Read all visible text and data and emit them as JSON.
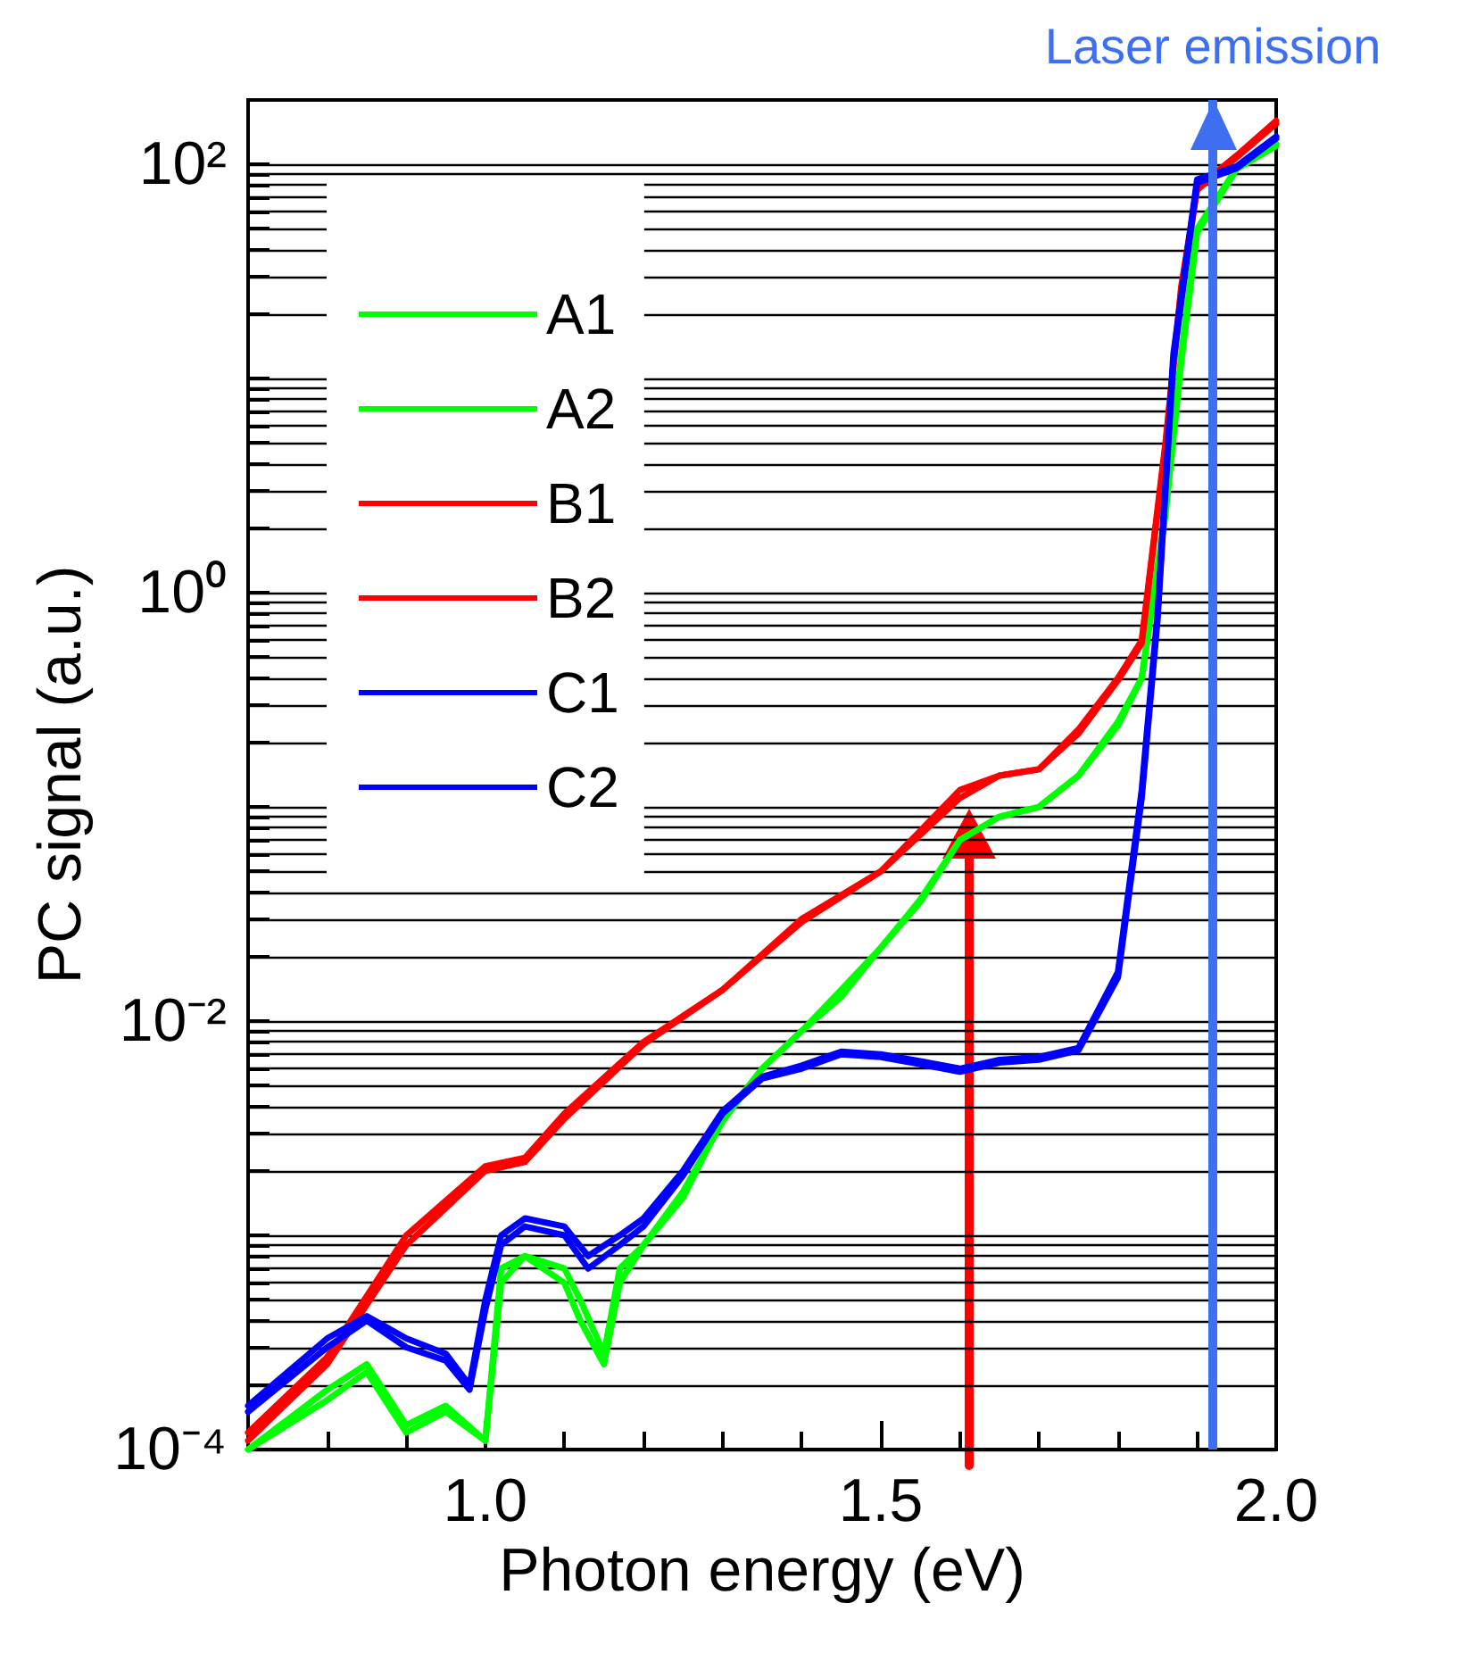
{
  "chart_data": {
    "type": "line",
    "xlabel": "Photon energy (eV)",
    "ylabel": "PC signal (a.u.)",
    "log": "y",
    "grid": "y",
    "legend": "top left",
    "line_style": "solid",
    "marker": "none",
    "xlim": [
      0.7,
      2.0
    ],
    "xticks": [
      {
        "value": 0.8,
        "label": null
      },
      {
        "value": 0.9,
        "label": null
      },
      {
        "value": 1.0,
        "label": "1.0"
      },
      {
        "value": 1.1,
        "label": null
      },
      {
        "value": 1.2,
        "label": null
      },
      {
        "value": 1.3,
        "label": null
      },
      {
        "value": 1.4,
        "label": null
      },
      {
        "value": 1.5,
        "label": "1.5"
      },
      {
        "value": 1.6,
        "label": null
      },
      {
        "value": 1.7,
        "label": null
      },
      {
        "value": 1.8,
        "label": null
      },
      {
        "value": 1.9,
        "label": null
      },
      {
        "value": 2.0,
        "label": "2.0"
      }
    ],
    "ylim": [
      0.0001,
      200
    ],
    "yticks": [
      {
        "value": 0.0001,
        "label": "10⁻⁴"
      },
      {
        "value": 0.0002,
        "label": null
      },
      {
        "value": 0.0003,
        "label": null
      },
      {
        "value": 0.0004,
        "label": null
      },
      {
        "value": 0.0005,
        "label": null
      },
      {
        "value": 0.0006,
        "label": null
      },
      {
        "value": 0.0007,
        "label": null
      },
      {
        "value": 0.0008,
        "label": null
      },
      {
        "value": 0.0009,
        "label": null
      },
      {
        "value": 0.001,
        "label": null
      },
      {
        "value": 0.002,
        "label": null
      },
      {
        "value": 0.003,
        "label": null
      },
      {
        "value": 0.004,
        "label": null
      },
      {
        "value": 0.005,
        "label": null
      },
      {
        "value": 0.006,
        "label": null
      },
      {
        "value": 0.007,
        "label": null
      },
      {
        "value": 0.008,
        "label": null
      },
      {
        "value": 0.009,
        "label": null
      },
      {
        "value": 0.01,
        "label": "10⁻²"
      },
      {
        "value": 0.02,
        "label": null
      },
      {
        "value": 0.03,
        "label": null
      },
      {
        "value": 0.04,
        "label": null
      },
      {
        "value": 0.05,
        "label": null
      },
      {
        "value": 0.06,
        "label": null
      },
      {
        "value": 0.07,
        "label": null
      },
      {
        "value": 0.08,
        "label": null
      },
      {
        "value": 0.09,
        "label": null
      },
      {
        "value": 0.1,
        "label": null
      },
      {
        "value": 0.2,
        "label": null
      },
      {
        "value": 0.3,
        "label": null
      },
      {
        "value": 0.4,
        "label": null
      },
      {
        "value": 0.5,
        "label": null
      },
      {
        "value": 0.6,
        "label": null
      },
      {
        "value": 0.7,
        "label": null
      },
      {
        "value": 0.8,
        "label": null
      },
      {
        "value": 0.9,
        "label": null
      },
      {
        "value": 1,
        "label": "10⁰"
      },
      {
        "value": 2,
        "label": null
      },
      {
        "value": 3,
        "label": null
      },
      {
        "value": 4,
        "label": null
      },
      {
        "value": 5,
        "label": null
      },
      {
        "value": 6,
        "label": null
      },
      {
        "value": 7,
        "label": null
      },
      {
        "value": 8,
        "label": null
      },
      {
        "value": 9,
        "label": null
      },
      {
        "value": 10,
        "label": null
      },
      {
        "value": 20,
        "label": null
      },
      {
        "value": 30,
        "label": null
      },
      {
        "value": 40,
        "label": null
      },
      {
        "value": 50,
        "label": null
      },
      {
        "value": 60,
        "label": null
      },
      {
        "value": 70,
        "label": null
      },
      {
        "value": 80,
        "label": null
      },
      {
        "value": 90,
        "label": null
      },
      {
        "value": 100,
        "label": "10²"
      }
    ],
    "ref_lines": [
      {
        "axis": "x",
        "value": 1.92,
        "label": "Laser emission",
        "color": "#3d6ff0"
      }
    ],
    "series": [
      {
        "name": "A1",
        "color": "#00ff00",
        "x": [
          0.7,
          0.8,
          0.85,
          0.9,
          0.95,
          1.0,
          1.02,
          1.05,
          1.1,
          1.12,
          1.15,
          1.17,
          1.2,
          1.25,
          1.3,
          1.35,
          1.4,
          1.45,
          1.5,
          1.55,
          1.6,
          1.65,
          1.7,
          1.75,
          1.8,
          1.83,
          1.86,
          1.88,
          1.9,
          1.95,
          2.0
        ],
        "values": [
          0.0001,
          0.00019,
          0.00025,
          0.00013,
          0.00016,
          0.00011,
          0.0007,
          0.0008,
          0.0007,
          0.0005,
          0.00028,
          0.0007,
          0.0009,
          0.0015,
          0.0035,
          0.006,
          0.009,
          0.014,
          0.022,
          0.037,
          0.07,
          0.09,
          0.1,
          0.14,
          0.25,
          0.4,
          2.4,
          13,
          50,
          96,
          125
        ]
      },
      {
        "name": "A2",
        "color": "#00ff00",
        "x": [
          0.7,
          0.8,
          0.85,
          0.9,
          0.95,
          1.0,
          1.02,
          1.05,
          1.1,
          1.12,
          1.15,
          1.17,
          1.2,
          1.25,
          1.3,
          1.35,
          1.4,
          1.45,
          1.5,
          1.55,
          1.6,
          1.65,
          1.7,
          1.75,
          1.8,
          1.83,
          1.86,
          1.88,
          1.9,
          1.95,
          2.0
        ],
        "values": [
          0.0001,
          0.00017,
          0.00023,
          0.00012,
          0.00015,
          0.00011,
          0.0006,
          0.0008,
          0.0006,
          0.0004,
          0.00025,
          0.0006,
          0.0009,
          0.0016,
          0.0034,
          0.006,
          0.009,
          0.013,
          0.022,
          0.036,
          0.07,
          0.09,
          0.1,
          0.14,
          0.24,
          0.4,
          2.3,
          12,
          48,
          95,
          122
        ]
      },
      {
        "name": "B1",
        "color": "#ff0000",
        "x": [
          0.7,
          0.8,
          0.9,
          1.0,
          1.05,
          1.1,
          1.2,
          1.3,
          1.4,
          1.5,
          1.6,
          1.65,
          1.7,
          1.75,
          1.8,
          1.83,
          1.86,
          1.88,
          1.9,
          1.95,
          2.0
        ],
        "values": [
          0.00012,
          0.00027,
          0.001,
          0.0021,
          0.0023,
          0.0037,
          0.008,
          0.014,
          0.03,
          0.05,
          0.12,
          0.14,
          0.15,
          0.23,
          0.4,
          0.6,
          5,
          27,
          78,
          110,
          160
        ]
      },
      {
        "name": "B2",
        "color": "#ff0000",
        "x": [
          0.7,
          0.8,
          0.9,
          1.0,
          1.05,
          1.1,
          1.2,
          1.3,
          1.4,
          1.5,
          1.6,
          1.65,
          1.7,
          1.75,
          1.8,
          1.83,
          1.86,
          1.88,
          1.9,
          1.95,
          2.0
        ],
        "values": [
          0.00011,
          0.00025,
          0.0009,
          0.002,
          0.0022,
          0.0035,
          0.0078,
          0.014,
          0.029,
          0.05,
          0.11,
          0.14,
          0.15,
          0.22,
          0.39,
          0.58,
          4.8,
          26,
          76,
          108,
          155
        ]
      },
      {
        "name": "C1",
        "color": "#0000ff",
        "x": [
          0.7,
          0.8,
          0.85,
          0.9,
          0.95,
          0.98,
          1.0,
          1.02,
          1.05,
          1.1,
          1.13,
          1.17,
          1.2,
          1.25,
          1.3,
          1.35,
          1.4,
          1.45,
          1.5,
          1.55,
          1.6,
          1.65,
          1.7,
          1.75,
          1.8,
          1.83,
          1.85,
          1.87,
          1.9,
          1.95,
          2.0
        ],
        "values": [
          0.00016,
          0.00033,
          0.00042,
          0.00033,
          0.00028,
          0.0002,
          0.0005,
          0.001,
          0.0012,
          0.0011,
          0.0008,
          0.001,
          0.0012,
          0.002,
          0.0038,
          0.0055,
          0.0062,
          0.0072,
          0.007,
          0.0065,
          0.006,
          0.0066,
          0.0068,
          0.0075,
          0.017,
          0.12,
          0.8,
          13,
          85,
          98,
          135
        ]
      },
      {
        "name": "C2",
        "color": "#0000ff",
        "x": [
          0.7,
          0.8,
          0.85,
          0.9,
          0.95,
          0.98,
          1.0,
          1.02,
          1.05,
          1.1,
          1.13,
          1.17,
          1.2,
          1.25,
          1.3,
          1.35,
          1.4,
          1.45,
          1.5,
          1.55,
          1.6,
          1.65,
          1.7,
          1.75,
          1.8,
          1.83,
          1.85,
          1.87,
          1.9,
          1.95,
          2.0
        ],
        "values": [
          0.00015,
          0.0003,
          0.0004,
          0.0003,
          0.00026,
          0.00019,
          0.00045,
          0.0009,
          0.0011,
          0.001,
          0.0007,
          0.0009,
          0.0011,
          0.0019,
          0.0037,
          0.0054,
          0.006,
          0.007,
          0.0068,
          0.0063,
          0.0058,
          0.0064,
          0.0066,
          0.0073,
          0.016,
          0.11,
          0.75,
          12,
          82,
          96,
          132
        ]
      }
    ]
  }
}
